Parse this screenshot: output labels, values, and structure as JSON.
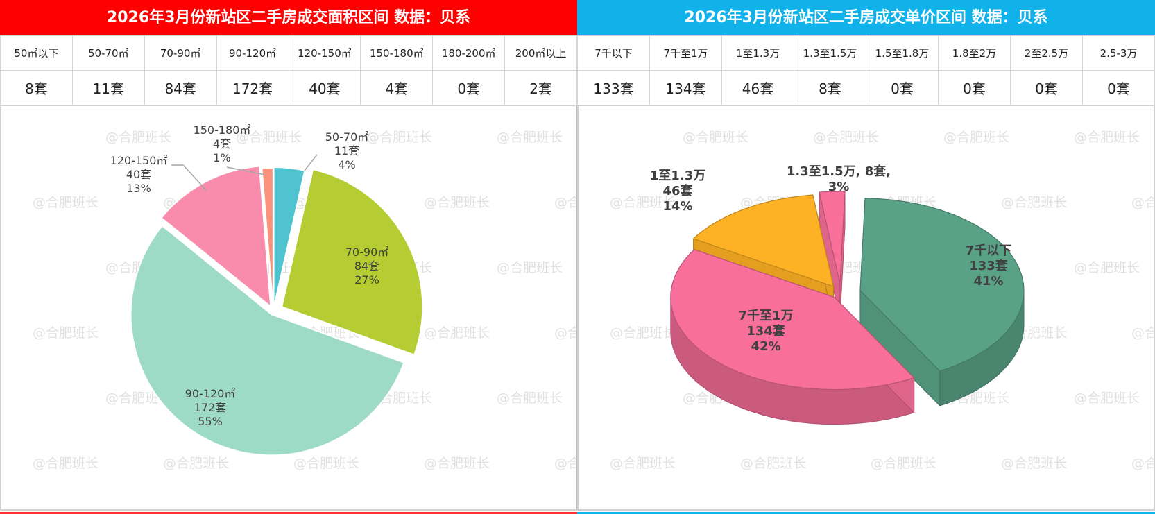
{
  "left": {
    "title": "2026年3月份新站区二手房成交面积区间 数据：贝系",
    "headers": [
      "50㎡以下",
      "50-70㎡",
      "70-90㎡",
      "90-120㎡",
      "120-150㎡",
      "150-180㎡",
      "180-200㎡",
      "200㎡以上"
    ],
    "values": [
      "8套",
      "11套",
      "84套",
      "172套",
      "40套",
      "4套",
      "0套",
      "2套"
    ]
  },
  "right": {
    "title": "2026年3月份新站区二手房成交单价区间 数据：贝系",
    "headers": [
      "7千以下",
      "7千至1万",
      "1至1.3万",
      "1.3至1.5万",
      "1.5至1.8万",
      "1.8至2万",
      "2至2.5万",
      "2.5-3万"
    ],
    "values": [
      "133套",
      "134套",
      "46套",
      "8套",
      "0套",
      "0套",
      "0套",
      "0套"
    ]
  },
  "watermark": "@合肥班长",
  "chart_data": [
    {
      "type": "pie",
      "slices": [
        {
          "label": "50-70㎡",
          "value": 11,
          "count_label": "11套",
          "percent_label": "4%",
          "color": "#4fc3cf"
        },
        {
          "label": "70-90㎡",
          "value": 84,
          "count_label": "84套",
          "percent_label": "27%",
          "color": "#b5cd33"
        },
        {
          "label": "90-120㎡",
          "value": 172,
          "count_label": "172套",
          "percent_label": "55%",
          "color": "#9ddbc6"
        },
        {
          "label": "120-150㎡",
          "value": 40,
          "count_label": "40套",
          "percent_label": "13%",
          "color": "#f98cad"
        },
        {
          "label": "150-180㎡",
          "value": 4,
          "count_label": "4套",
          "percent_label": "1%",
          "color": "#f8927a"
        }
      ]
    },
    {
      "type": "pie",
      "style": "3d",
      "slices": [
        {
          "label": "7千以下",
          "value": 133,
          "count_label": "133套",
          "percent_label": "41%",
          "color": "#5aa287"
        },
        {
          "label": "7千至1万",
          "value": 134,
          "count_label": "134套",
          "percent_label": "42%",
          "color": "#f76f9a"
        },
        {
          "label": "1至1.3万",
          "value": 46,
          "count_label": "46套",
          "percent_label": "14%",
          "color": "#fdb124"
        },
        {
          "label": "1.3至1.5万",
          "value": 8,
          "count_label": "8套",
          "percent_label": "3%",
          "color": "#f76f9a"
        }
      ]
    }
  ]
}
